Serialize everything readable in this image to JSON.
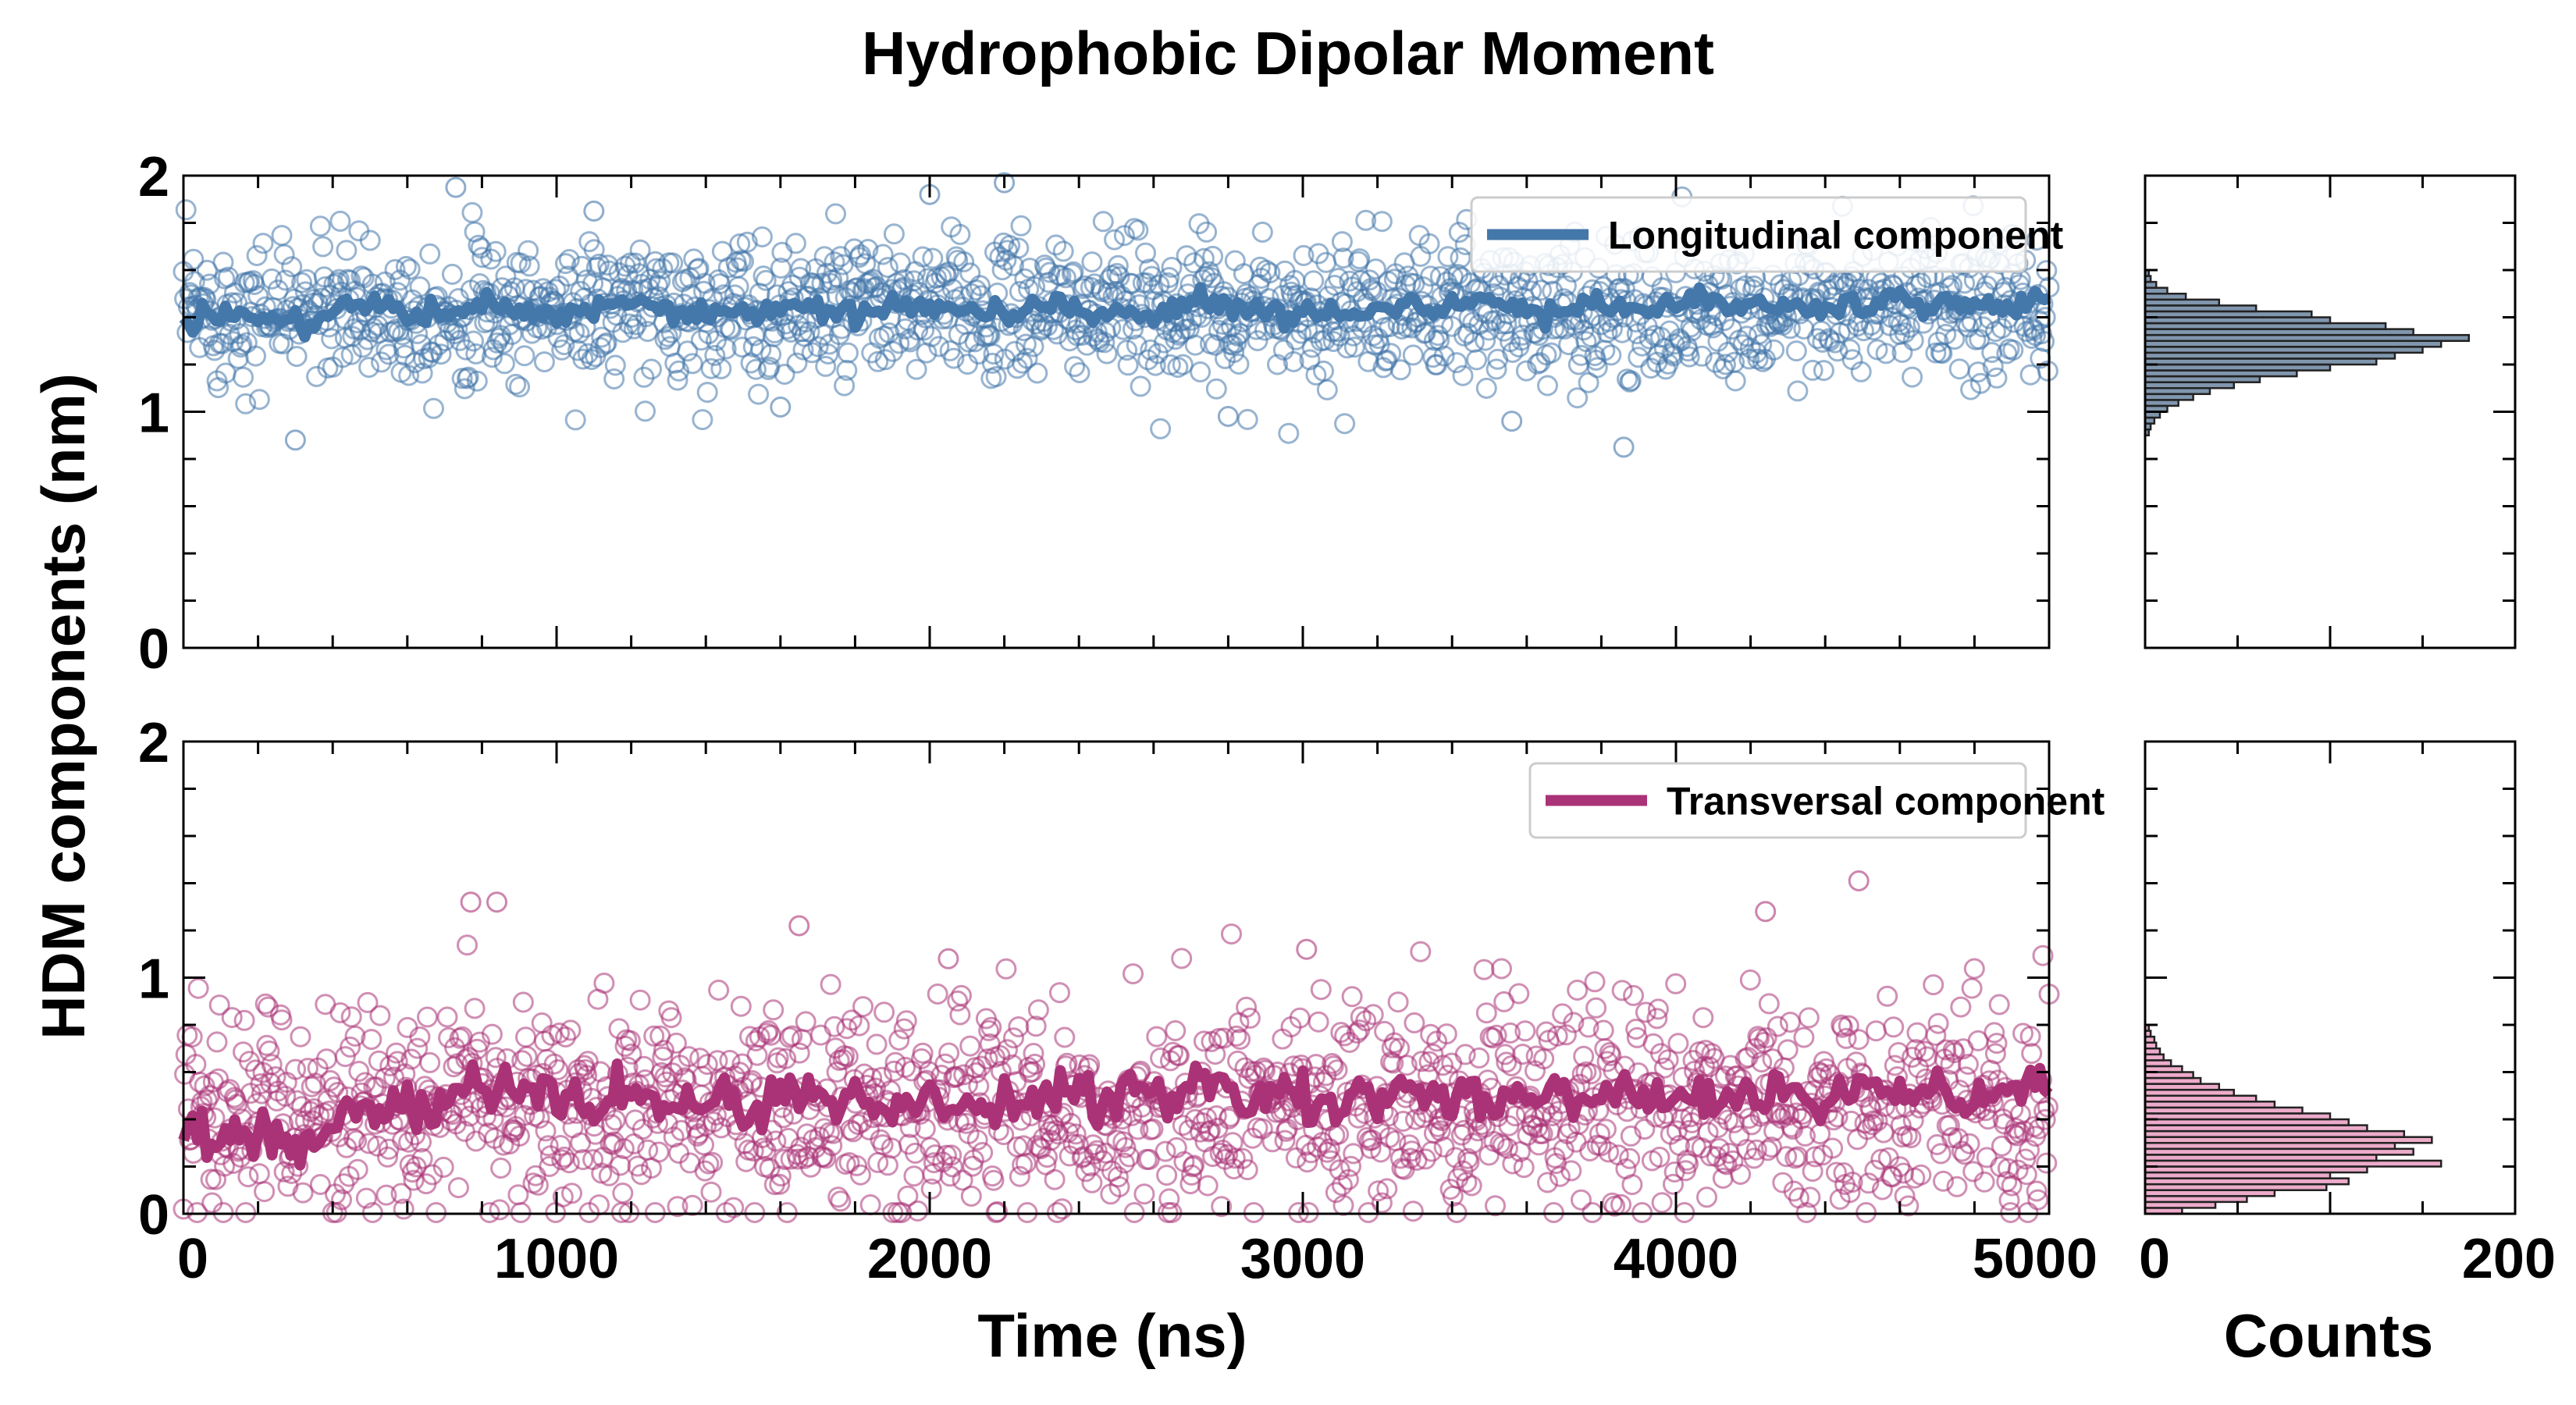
{
  "chart_data": {
    "type": "scatter",
    "title": "Hydrophobic Dipolar Moment",
    "ylabel": "HDM components (nm)",
    "xlabel": "Time (ns)",
    "hist_xlabel": "Counts",
    "colors": {
      "longitudinal": "#4477aa",
      "transversal": "#aa3377",
      "longitudinal_hist_fill": "#4a6a8a",
      "transversal_hist_fill": "#e58fb8"
    },
    "panels": [
      {
        "name": "longitudinal",
        "legend": "Longitudinal component",
        "xlim": [
          0,
          5000
        ],
        "ylim": [
          0,
          2
        ],
        "xticks": [
          0,
          1000,
          2000,
          3000,
          4000,
          5000
        ],
        "yticks": [
          "0",
          "1",
          "2"
        ],
        "yticks_values": [
          0,
          1,
          2
        ],
        "scatter_mean": 1.43,
        "scatter_spread": 0.15,
        "scatter_points_n": 1500,
        "running_mean_samples": [
          1.38,
          1.42,
          1.4,
          1.37,
          1.44,
          1.46,
          1.4,
          1.43,
          1.45,
          1.42,
          1.39,
          1.44,
          1.47,
          1.41,
          1.43,
          1.4,
          1.45,
          1.43,
          1.42,
          1.46,
          1.44,
          1.41,
          1.43,
          1.45,
          1.42,
          1.4,
          1.44,
          1.46,
          1.43,
          1.41,
          1.44,
          1.42,
          1.45,
          1.43,
          1.46,
          1.44,
          1.42,
          1.47,
          1.43,
          1.45,
          1.48,
          1.44,
          1.46,
          1.43,
          1.45,
          1.47,
          1.44,
          1.46,
          1.45,
          1.47
        ],
        "outliers": [
          [
            300,
            0.88
          ],
          [
            730,
            1.95
          ],
          [
            1100,
            1.85
          ],
          [
            1600,
            1.02
          ],
          [
            2000,
            1.92
          ],
          [
            2200,
            1.97
          ],
          [
            2800,
            0.98
          ],
          [
            3560,
            0.96
          ],
          [
            3860,
            0.85
          ],
          [
            4900,
            1.75
          ]
        ]
      },
      {
        "name": "transversal",
        "legend": "Transversal component",
        "xlim": [
          0,
          5000
        ],
        "ylim": [
          0,
          2
        ],
        "xticks": [
          0,
          1000,
          2000,
          3000,
          4000,
          5000
        ],
        "xtick_labels": [
          "0",
          "1000",
          "2000",
          "3000",
          "4000",
          "5000"
        ],
        "yticks": [
          "0",
          "1",
          "2"
        ],
        "yticks_values": [
          0,
          1,
          2
        ],
        "scatter_mean": 0.45,
        "scatter_spread": 0.22,
        "scatter_points_n": 1500,
        "running_mean_samples": [
          0.34,
          0.31,
          0.35,
          0.28,
          0.38,
          0.45,
          0.42,
          0.5,
          0.47,
          0.56,
          0.49,
          0.44,
          0.53,
          0.46,
          0.48,
          0.42,
          0.54,
          0.45,
          0.51,
          0.47,
          0.43,
          0.5,
          0.48,
          0.56,
          0.44,
          0.55,
          0.49,
          0.58,
          0.47,
          0.52,
          0.45,
          0.49,
          0.55,
          0.43,
          0.5,
          0.47,
          0.53,
          0.46,
          0.51,
          0.44,
          0.5,
          0.48,
          0.52,
          0.46,
          0.55,
          0.49,
          0.57,
          0.45,
          0.52,
          0.5
        ],
        "outliers": [
          [
            770,
            1.32
          ],
          [
            840,
            1.32
          ],
          [
            1650,
            1.22
          ],
          [
            4240,
            1.28
          ],
          [
            4490,
            1.41
          ],
          [
            2050,
            1.08
          ],
          [
            3010,
            1.12
          ]
        ]
      }
    ],
    "histograms": [
      {
        "name": "longitudinal-hist",
        "xlim": [
          0,
          200
        ],
        "xticks": [
          "0",
          "200"
        ],
        "xticks_values": [
          0,
          200
        ],
        "ylim": [
          0,
          2
        ],
        "bin_width": 0.025,
        "bins_start": 0.9,
        "counts": [
          2,
          3,
          5,
          8,
          12,
          18,
          26,
          35,
          48,
          62,
          82,
          100,
          125,
          135,
          150,
          160,
          175,
          145,
          130,
          100,
          90,
          60,
          40,
          22,
          12,
          6,
          3,
          2
        ]
      },
      {
        "name": "transversal-hist",
        "xlim": [
          0,
          200
        ],
        "xticks": [
          "0",
          "200"
        ],
        "xticks_values": [
          0,
          200
        ],
        "ylim": [
          0,
          2
        ],
        "bin_width": 0.025,
        "bins_start": 0.0,
        "counts": [
          20,
          38,
          55,
          70,
          98,
          110,
          100,
          120,
          160,
          125,
          145,
          135,
          155,
          140,
          120,
          110,
          100,
          85,
          70,
          60,
          48,
          40,
          30,
          26,
          20,
          14,
          10,
          8,
          6,
          5,
          3,
          2
        ]
      }
    ]
  }
}
